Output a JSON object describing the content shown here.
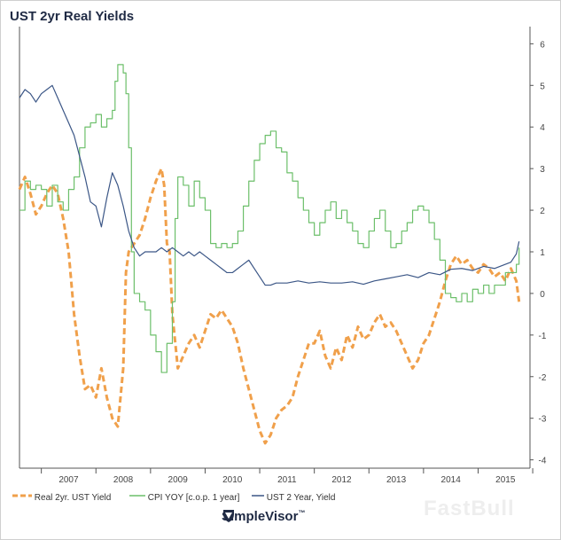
{
  "title": "UST 2yr Real Yields",
  "legend": {
    "real": "Real 2yr. UST Yield",
    "cpi": "CPI YOY [c.o.p. 1 year]",
    "ust": "UST 2 Year, Yield"
  },
  "brand": {
    "name": "SimpleVisor",
    "tm": "™"
  },
  "watermark": "FastBull",
  "colors": {
    "real": "#f0a04b",
    "cpi": "#6cbf6a",
    "ust": "#3b5686",
    "axis": "#444444",
    "grid": "#e6e6e6"
  },
  "chart_data": {
    "type": "line",
    "title": "UST 2yr Real Yields",
    "x_range": [
      2006.6,
      2015.95
    ],
    "y_range": [
      -4.2,
      6.2
    ],
    "y_ticks": [
      6,
      5,
      4,
      3,
      2,
      1,
      0,
      -1,
      -2,
      -3,
      -4
    ],
    "x_tick_labels": [
      "2007",
      "2008",
      "2009",
      "2010",
      "2011",
      "2012",
      "2013",
      "2014",
      "2015"
    ],
    "y_axis_side": "right",
    "grid": false,
    "legend_position": "bottom",
    "series": [
      {
        "name": "Real 2yr. UST Yield",
        "color": "#f0a04b",
        "style": "dashed",
        "points": [
          [
            2006.6,
            2.5
          ],
          [
            2006.7,
            2.8
          ],
          [
            2006.8,
            2.4
          ],
          [
            2006.9,
            1.9
          ],
          [
            2007.0,
            2.1
          ],
          [
            2007.1,
            2.4
          ],
          [
            2007.2,
            2.6
          ],
          [
            2007.3,
            2.4
          ],
          [
            2007.4,
            1.8
          ],
          [
            2007.5,
            1.0
          ],
          [
            2007.6,
            -0.5
          ],
          [
            2007.7,
            -1.5
          ],
          [
            2007.8,
            -2.3
          ],
          [
            2007.9,
            -2.2
          ],
          [
            2008.0,
            -2.5
          ],
          [
            2008.1,
            -1.8
          ],
          [
            2008.2,
            -2.5
          ],
          [
            2008.3,
            -3.0
          ],
          [
            2008.4,
            -3.2
          ],
          [
            2008.5,
            -1.8
          ],
          [
            2008.55,
            0.5
          ],
          [
            2008.6,
            1.0
          ],
          [
            2008.7,
            1.2
          ],
          [
            2008.8,
            1.4
          ],
          [
            2008.9,
            1.8
          ],
          [
            2009.0,
            2.3
          ],
          [
            2009.1,
            2.7
          ],
          [
            2009.2,
            3.0
          ],
          [
            2009.25,
            2.6
          ],
          [
            2009.3,
            1.2
          ],
          [
            2009.35,
            1.0
          ],
          [
            2009.4,
            -0.5
          ],
          [
            2009.5,
            -1.8
          ],
          [
            2009.6,
            -1.5
          ],
          [
            2009.7,
            -1.2
          ],
          [
            2009.8,
            -1.0
          ],
          [
            2009.9,
            -1.3
          ],
          [
            2010.0,
            -0.9
          ],
          [
            2010.1,
            -0.5
          ],
          [
            2010.2,
            -0.6
          ],
          [
            2010.3,
            -0.4
          ],
          [
            2010.4,
            -0.6
          ],
          [
            2010.5,
            -0.8
          ],
          [
            2010.6,
            -1.2
          ],
          [
            2010.7,
            -1.8
          ],
          [
            2010.8,
            -2.3
          ],
          [
            2010.9,
            -2.8
          ],
          [
            2011.0,
            -3.3
          ],
          [
            2011.1,
            -3.6
          ],
          [
            2011.2,
            -3.4
          ],
          [
            2011.3,
            -3.0
          ],
          [
            2011.4,
            -2.8
          ],
          [
            2011.5,
            -2.7
          ],
          [
            2011.6,
            -2.5
          ],
          [
            2011.7,
            -2.0
          ],
          [
            2011.8,
            -1.6
          ],
          [
            2011.9,
            -1.2
          ],
          [
            2012.0,
            -1.2
          ],
          [
            2012.1,
            -0.9
          ],
          [
            2012.2,
            -1.5
          ],
          [
            2012.3,
            -1.8
          ],
          [
            2012.4,
            -1.3
          ],
          [
            2012.5,
            -1.6
          ],
          [
            2012.6,
            -1.0
          ],
          [
            2012.7,
            -1.3
          ],
          [
            2012.8,
            -0.8
          ],
          [
            2012.9,
            -1.1
          ],
          [
            2013.0,
            -1.0
          ],
          [
            2013.1,
            -0.7
          ],
          [
            2013.2,
            -0.5
          ],
          [
            2013.3,
            -0.8
          ],
          [
            2013.4,
            -0.7
          ],
          [
            2013.5,
            -0.9
          ],
          [
            2013.6,
            -1.2
          ],
          [
            2013.7,
            -1.5
          ],
          [
            2013.8,
            -1.8
          ],
          [
            2013.9,
            -1.6
          ],
          [
            2014.0,
            -1.2
          ],
          [
            2014.1,
            -1.0
          ],
          [
            2014.2,
            -0.6
          ],
          [
            2014.3,
            -0.2
          ],
          [
            2014.4,
            0.3
          ],
          [
            2014.5,
            0.7
          ],
          [
            2014.6,
            0.9
          ],
          [
            2014.7,
            0.7
          ],
          [
            2014.8,
            0.8
          ],
          [
            2014.9,
            0.6
          ],
          [
            2015.0,
            0.5
          ],
          [
            2015.1,
            0.7
          ],
          [
            2015.2,
            0.6
          ],
          [
            2015.3,
            0.4
          ],
          [
            2015.4,
            0.5
          ],
          [
            2015.5,
            0.3
          ],
          [
            2015.6,
            0.6
          ],
          [
            2015.7,
            0.3
          ],
          [
            2015.75,
            -0.2
          ]
        ]
      },
      {
        "name": "CPI YOY [c.o.p. 1 year]",
        "color": "#6cbf6a",
        "style": "step",
        "points": [
          [
            2006.6,
            2.0
          ],
          [
            2006.7,
            2.7
          ],
          [
            2006.8,
            2.5
          ],
          [
            2006.9,
            2.6
          ],
          [
            2007.0,
            2.5
          ],
          [
            2007.1,
            2.1
          ],
          [
            2007.2,
            2.6
          ],
          [
            2007.3,
            2.2
          ],
          [
            2007.4,
            2.0
          ],
          [
            2007.5,
            2.5
          ],
          [
            2007.6,
            2.8
          ],
          [
            2007.7,
            3.5
          ],
          [
            2007.8,
            4.0
          ],
          [
            2007.9,
            4.1
          ],
          [
            2008.0,
            4.3
          ],
          [
            2008.1,
            4.0
          ],
          [
            2008.2,
            4.2
          ],
          [
            2008.3,
            4.4
          ],
          [
            2008.35,
            5.1
          ],
          [
            2008.4,
            5.5
          ],
          [
            2008.5,
            5.3
          ],
          [
            2008.55,
            4.8
          ],
          [
            2008.6,
            3.5
          ],
          [
            2008.65,
            1.0
          ],
          [
            2008.7,
            0.0
          ],
          [
            2008.8,
            -0.2
          ],
          [
            2008.9,
            -0.4
          ],
          [
            2009.0,
            -1.0
          ],
          [
            2009.1,
            -1.4
          ],
          [
            2009.2,
            -1.9
          ],
          [
            2009.3,
            -1.2
          ],
          [
            2009.4,
            -0.2
          ],
          [
            2009.45,
            1.8
          ],
          [
            2009.5,
            2.8
          ],
          [
            2009.6,
            2.6
          ],
          [
            2009.7,
            2.1
          ],
          [
            2009.8,
            2.7
          ],
          [
            2009.9,
            2.3
          ],
          [
            2010.0,
            2.0
          ],
          [
            2010.1,
            1.2
          ],
          [
            2010.2,
            1.1
          ],
          [
            2010.3,
            1.2
          ],
          [
            2010.4,
            1.1
          ],
          [
            2010.5,
            1.2
          ],
          [
            2010.6,
            1.5
          ],
          [
            2010.7,
            2.1
          ],
          [
            2010.8,
            2.7
          ],
          [
            2010.9,
            3.2
          ],
          [
            2011.0,
            3.6
          ],
          [
            2011.1,
            3.8
          ],
          [
            2011.2,
            3.9
          ],
          [
            2011.3,
            3.5
          ],
          [
            2011.4,
            3.4
          ],
          [
            2011.5,
            2.9
          ],
          [
            2011.6,
            2.7
          ],
          [
            2011.7,
            2.3
          ],
          [
            2011.8,
            2.0
          ],
          [
            2011.9,
            1.7
          ],
          [
            2012.0,
            1.4
          ],
          [
            2012.1,
            1.7
          ],
          [
            2012.2,
            2.0
          ],
          [
            2012.3,
            2.2
          ],
          [
            2012.4,
            1.8
          ],
          [
            2012.5,
            2.0
          ],
          [
            2012.6,
            1.7
          ],
          [
            2012.7,
            1.5
          ],
          [
            2012.8,
            1.2
          ],
          [
            2012.9,
            1.1
          ],
          [
            2013.0,
            1.5
          ],
          [
            2013.1,
            1.8
          ],
          [
            2013.2,
            2.0
          ],
          [
            2013.3,
            1.5
          ],
          [
            2013.4,
            1.1
          ],
          [
            2013.5,
            1.2
          ],
          [
            2013.6,
            1.5
          ],
          [
            2013.7,
            1.7
          ],
          [
            2013.8,
            2.0
          ],
          [
            2013.9,
            2.1
          ],
          [
            2014.0,
            2.0
          ],
          [
            2014.1,
            1.7
          ],
          [
            2014.2,
            1.3
          ],
          [
            2014.3,
            0.8
          ],
          [
            2014.4,
            0.0
          ],
          [
            2014.5,
            -0.1
          ],
          [
            2014.6,
            -0.2
          ],
          [
            2014.7,
            0.0
          ],
          [
            2014.8,
            -0.2
          ],
          [
            2014.9,
            0.1
          ],
          [
            2015.0,
            0.0
          ],
          [
            2015.1,
            0.2
          ],
          [
            2015.2,
            0.0
          ],
          [
            2015.3,
            0.2
          ],
          [
            2015.4,
            0.2
          ],
          [
            2015.5,
            0.5
          ],
          [
            2015.6,
            0.5
          ],
          [
            2015.7,
            0.7
          ],
          [
            2015.75,
            1.1
          ]
        ]
      },
      {
        "name": "UST 2 Year, Yield",
        "color": "#3b5686",
        "style": "solid",
        "points": [
          [
            2006.6,
            4.7
          ],
          [
            2006.7,
            4.9
          ],
          [
            2006.8,
            4.8
          ],
          [
            2006.9,
            4.6
          ],
          [
            2007.0,
            4.8
          ],
          [
            2007.1,
            4.9
          ],
          [
            2007.2,
            5.0
          ],
          [
            2007.3,
            4.7
          ],
          [
            2007.4,
            4.4
          ],
          [
            2007.5,
            4.1
          ],
          [
            2007.6,
            3.8
          ],
          [
            2007.7,
            3.3
          ],
          [
            2007.8,
            2.8
          ],
          [
            2007.9,
            2.2
          ],
          [
            2008.0,
            2.1
          ],
          [
            2008.1,
            1.6
          ],
          [
            2008.2,
            2.3
          ],
          [
            2008.3,
            2.9
          ],
          [
            2008.4,
            2.6
          ],
          [
            2008.5,
            2.1
          ],
          [
            2008.6,
            1.5
          ],
          [
            2008.7,
            1.1
          ],
          [
            2008.8,
            0.9
          ],
          [
            2008.9,
            1.0
          ],
          [
            2009.0,
            1.0
          ],
          [
            2009.1,
            1.0
          ],
          [
            2009.2,
            1.1
          ],
          [
            2009.3,
            1.0
          ],
          [
            2009.4,
            1.1
          ],
          [
            2009.5,
            1.0
          ],
          [
            2009.6,
            0.9
          ],
          [
            2009.7,
            1.0
          ],
          [
            2009.8,
            0.9
          ],
          [
            2009.9,
            1.0
          ],
          [
            2010.0,
            0.9
          ],
          [
            2010.1,
            0.8
          ],
          [
            2010.2,
            0.7
          ],
          [
            2010.3,
            0.6
          ],
          [
            2010.4,
            0.5
          ],
          [
            2010.5,
            0.5
          ],
          [
            2010.6,
            0.6
          ],
          [
            2010.7,
            0.7
          ],
          [
            2010.8,
            0.8
          ],
          [
            2010.9,
            0.6
          ],
          [
            2011.0,
            0.4
          ],
          [
            2011.1,
            0.2
          ],
          [
            2011.2,
            0.2
          ],
          [
            2011.3,
            0.25
          ],
          [
            2011.5,
            0.25
          ],
          [
            2011.7,
            0.3
          ],
          [
            2011.9,
            0.25
          ],
          [
            2012.1,
            0.28
          ],
          [
            2012.3,
            0.25
          ],
          [
            2012.5,
            0.25
          ],
          [
            2012.7,
            0.28
          ],
          [
            2012.9,
            0.22
          ],
          [
            2013.1,
            0.3
          ],
          [
            2013.3,
            0.35
          ],
          [
            2013.5,
            0.4
          ],
          [
            2013.7,
            0.45
          ],
          [
            2013.9,
            0.38
          ],
          [
            2014.1,
            0.5
          ],
          [
            2014.3,
            0.45
          ],
          [
            2014.5,
            0.58
          ],
          [
            2014.7,
            0.6
          ],
          [
            2014.9,
            0.55
          ],
          [
            2015.1,
            0.65
          ],
          [
            2015.3,
            0.6
          ],
          [
            2015.5,
            0.7
          ],
          [
            2015.6,
            0.75
          ],
          [
            2015.7,
            0.95
          ],
          [
            2015.75,
            1.25
          ]
        ]
      }
    ]
  }
}
